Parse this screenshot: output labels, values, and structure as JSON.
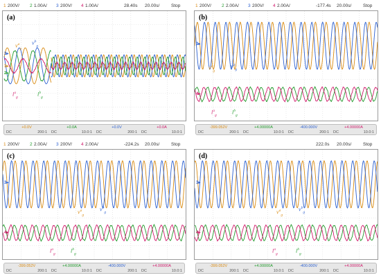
{
  "colors": {
    "ch1": "#d98a10",
    "ch2": "#1f9a2a",
    "ch3": "#2a5fd0",
    "ch4": "#d0186a",
    "grid": "#d9d9d9"
  },
  "panels": [
    {
      "label": "(a)",
      "topbar": {
        "ch1_num": "1",
        "ch1_scale": "200V/",
        "ch2_num": "2",
        "ch2_scale": "1.00A/",
        "ch3_num": "3",
        "ch3_scale": "200V/",
        "ch4_num": "4",
        "ch4_scale": "1.00A/",
        "time": "28.40s",
        "timebase": "20.00s/",
        "state": "Stop"
      },
      "bottom": [
        {
          "value": "+0.0V",
          "coupling": "DC",
          "ratio": "200:1"
        },
        {
          "value": "+0.0A",
          "coupling": "DC",
          "ratio": "10.0:1"
        },
        {
          "value": "+0.0V",
          "coupling": "DC",
          "ratio": "200:1"
        },
        {
          "value": "+0.0A",
          "coupling": "DC",
          "ratio": "10.0:1"
        }
      ],
      "signals": {
        "v_ga": "v",
        "v_gb": "v",
        "i_ga": "i",
        "i_gb": "i",
        "sub": "g",
        "sup_a": "a",
        "sup_b": "b"
      },
      "markers": [
        "3",
        "1",
        "2"
      ]
    },
    {
      "label": "(b)",
      "topbar": {
        "ch1_num": "1",
        "ch1_scale": "200V/",
        "ch2_num": "2",
        "ch2_scale": "2.00A/",
        "ch3_num": "3",
        "ch3_scale": "200V/",
        "ch4_num": "4",
        "ch4_scale": "2.00A/",
        "time": "-177.4s",
        "timebase": "20.00s/",
        "state": "Stop"
      },
      "bottom": [
        {
          "value": "-399.052V",
          "coupling": "DC",
          "ratio": "200:1"
        },
        {
          "value": "+4.00000A",
          "coupling": "DC",
          "ratio": "10.0:1"
        },
        {
          "value": "-400.000V",
          "coupling": "DC",
          "ratio": "200:1"
        },
        {
          "value": "+4.00000A",
          "coupling": "DC",
          "ratio": "10.0:1"
        }
      ],
      "signals": {
        "v_ga": "v",
        "v_gb": "v",
        "i_ga": "i",
        "i_gb": "i",
        "sub": "g",
        "sup_a": "a",
        "sup_b": "b"
      },
      "markers": [
        "3",
        "4"
      ]
    },
    {
      "label": "(c)",
      "topbar": {
        "ch1_num": "1",
        "ch1_scale": "200V/",
        "ch2_num": "2",
        "ch2_scale": "2.00A/",
        "ch3_num": "3",
        "ch3_scale": "200V/",
        "ch4_num": "4",
        "ch4_scale": "2.00A/",
        "time": "-224.2s",
        "timebase": "20.00s/",
        "state": "Stop"
      },
      "bottom": [
        {
          "value": "-399.052V",
          "coupling": "DC",
          "ratio": "200:1"
        },
        {
          "value": "+4.00000A",
          "coupling": "DC",
          "ratio": "10.0:1"
        },
        {
          "value": "-400.000V",
          "coupling": "DC",
          "ratio": "200:1"
        },
        {
          "value": "+4.00000A",
          "coupling": "DC",
          "ratio": "10.0:1"
        }
      ],
      "signals": {
        "v_ga": "v",
        "v_gb": "v",
        "i_ga": "i",
        "i_gb": "i",
        "sub": "g",
        "sup_a": "a",
        "sup_b": "b"
      },
      "markers": [
        "3",
        "4"
      ]
    },
    {
      "label": "(d)",
      "topbar": {
        "ch1_num": "",
        "ch1_scale": "",
        "ch2_num": "",
        "ch2_scale": "",
        "ch3_num": "",
        "ch3_scale": "",
        "ch4_num": "",
        "ch4_scale": "",
        "time": "222.0s",
        "timebase": "20.00s/",
        "state": "Stop"
      },
      "bottom": [
        {
          "value": "-399.052V",
          "coupling": "DC",
          "ratio": "200:1"
        },
        {
          "value": "+4.00000A",
          "coupling": "DC",
          "ratio": "10.0:1"
        },
        {
          "value": "-400.000V",
          "coupling": "DC",
          "ratio": "200:1"
        },
        {
          "value": "+4.00000A",
          "coupling": "DC",
          "ratio": "10.0:1"
        }
      ],
      "signals": {
        "v_ga": "v",
        "v_gb": "v",
        "i_ga": "i",
        "i_gb": "i",
        "sub": "g",
        "sup_a": "a",
        "sup_b": "b"
      },
      "markers": [
        "3",
        "4"
      ]
    }
  ]
}
